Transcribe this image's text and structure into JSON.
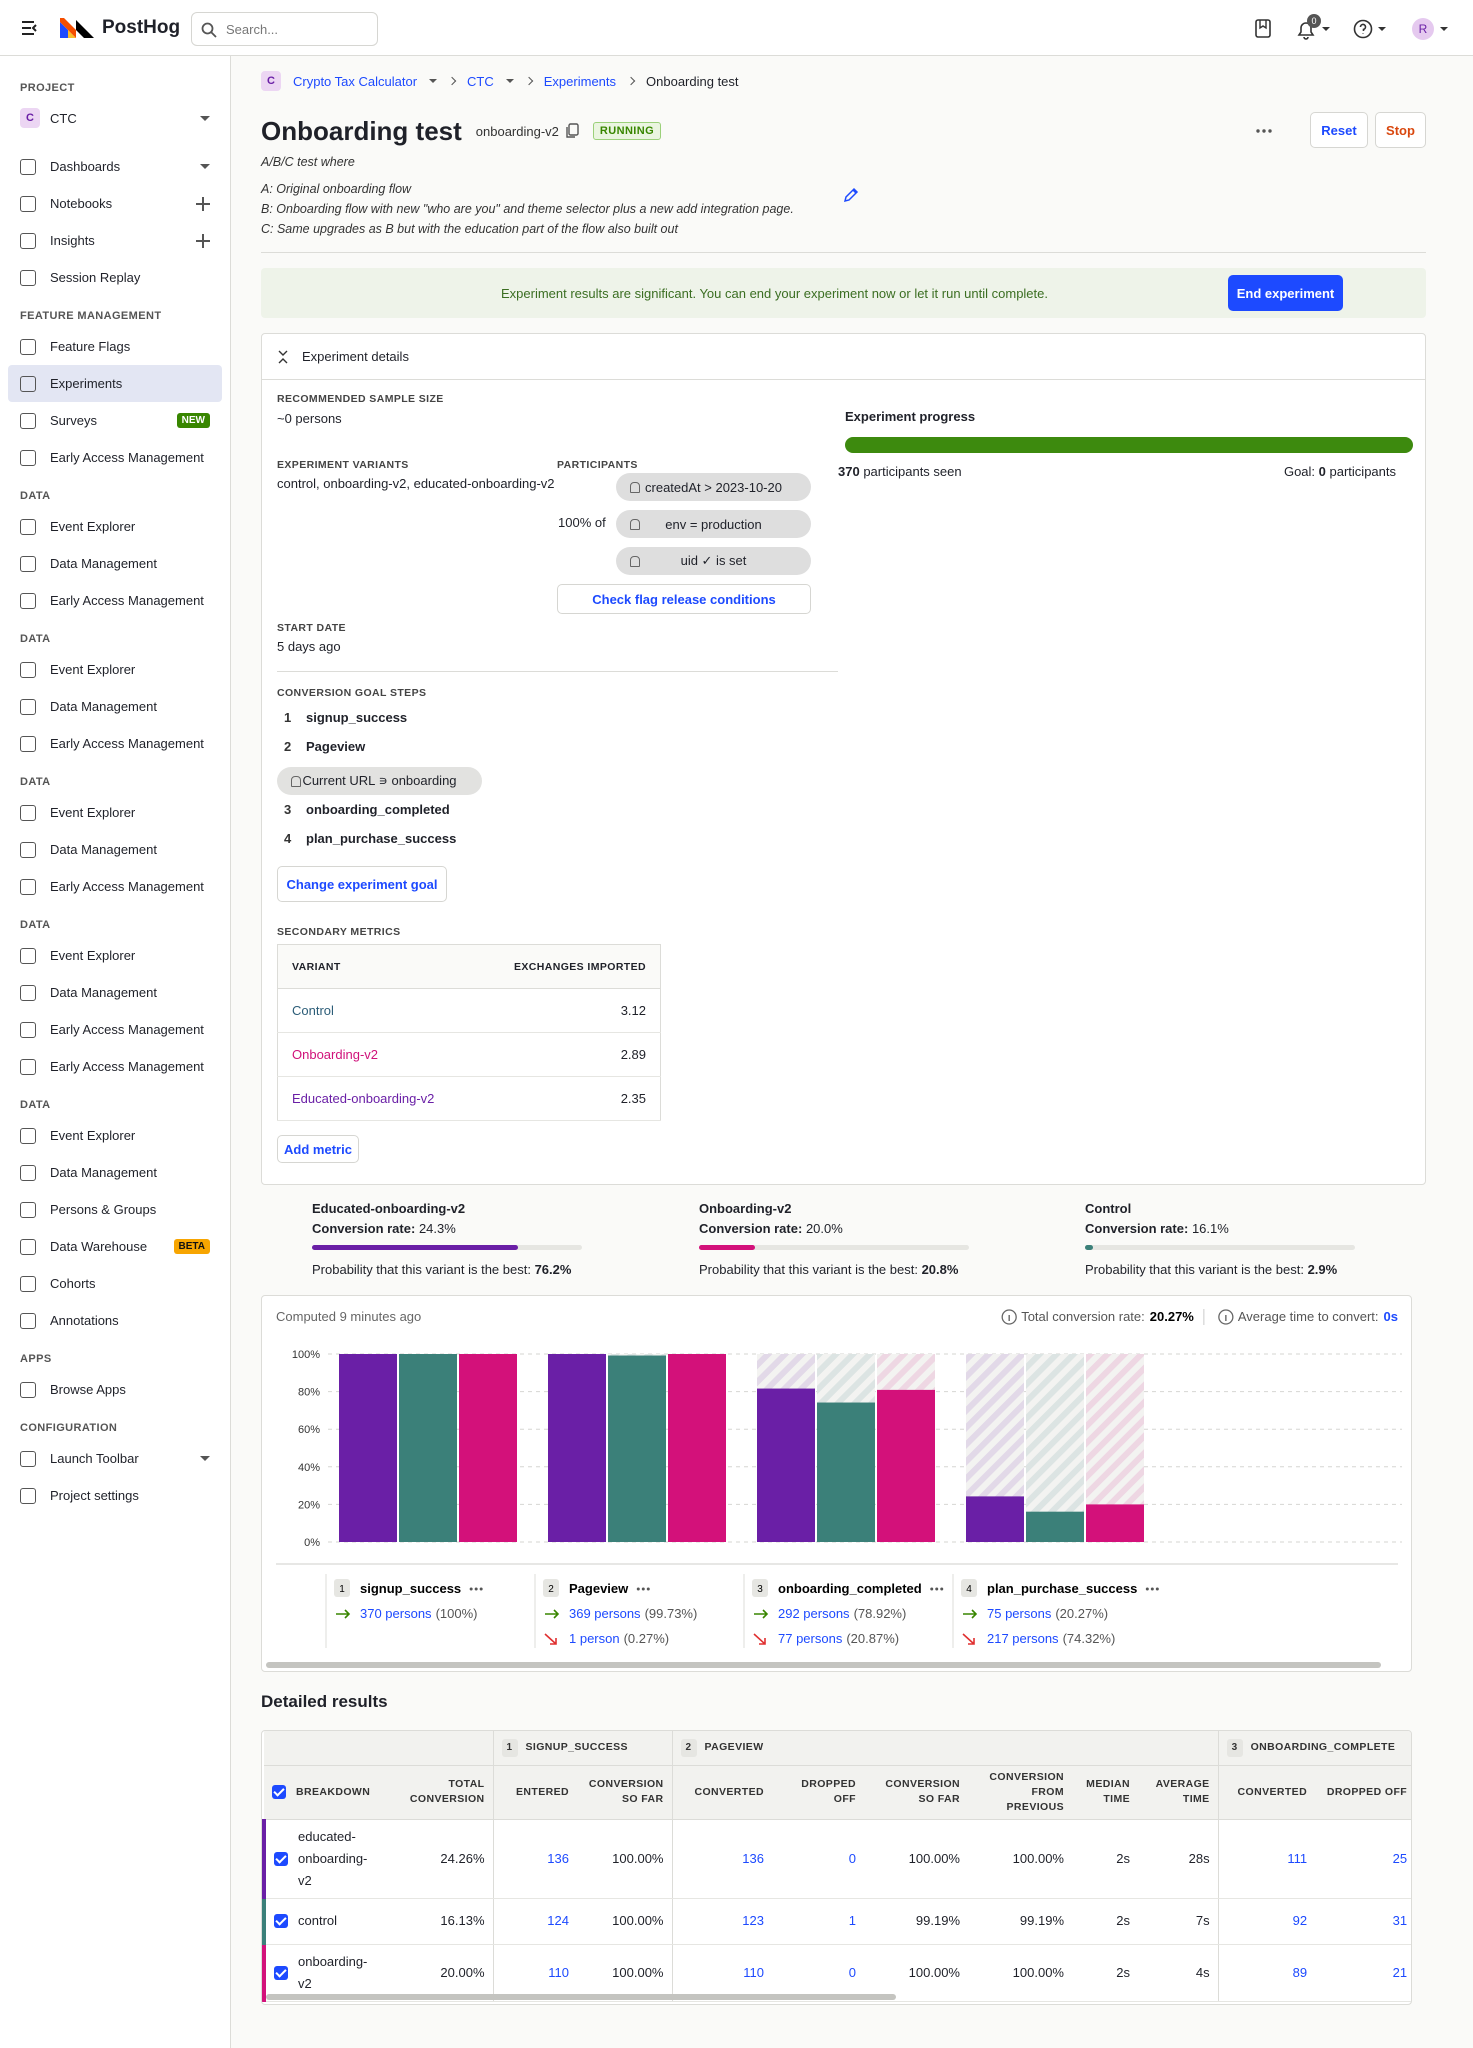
{
  "header": {
    "brand": "PostHog",
    "search_placeholder": "Search...",
    "notifications": "0",
    "avatar": "R"
  },
  "sidebar": {
    "project_label": "PROJECT",
    "project_badge": "C",
    "project": "CTC",
    "groups": [
      {
        "items": [
          {
            "label": "Dashboards"
          },
          {
            "label": "Notebooks"
          },
          {
            "label": "Insights"
          },
          {
            "label": "Session Replay"
          }
        ]
      },
      {
        "title": "FEATURE MANAGEMENT",
        "items": [
          {
            "label": "Feature Flags"
          },
          {
            "label": "Experiments",
            "active": true
          },
          {
            "label": "Surveys",
            "badge": "NEW",
            "badge_color": "#388600",
            "badge_text_color": "#ffffff"
          },
          {
            "label": "Early Access Management"
          }
        ]
      },
      {
        "title": "DATA",
        "items": [
          {
            "label": "Event Explorer"
          },
          {
            "label": "Data Management"
          },
          {
            "label": "Early Access Management"
          }
        ]
      },
      {
        "title": "DATA",
        "items": [
          {
            "label": "Event Explorer"
          },
          {
            "label": "Data Management"
          },
          {
            "label": "Early Access Management"
          }
        ]
      },
      {
        "title": "DATA",
        "items": [
          {
            "label": "Event Explorer"
          },
          {
            "label": "Data Management"
          },
          {
            "label": "Early Access Management"
          }
        ]
      },
      {
        "title": "DATA",
        "items": [
          {
            "label": "Event Explorer"
          },
          {
            "label": "Data Management"
          },
          {
            "label": "Early Access Management"
          },
          {
            "label": "Early Access Management"
          }
        ]
      },
      {
        "title": "DATA",
        "items": [
          {
            "label": "Event Explorer"
          },
          {
            "label": "Data Management"
          },
          {
            "label": "Persons & Groups"
          },
          {
            "label": "Data Warehouse",
            "badge": "BETA",
            "badge_color": "#f7a501",
            "badge_text_color": "#111111"
          },
          {
            "label": "Cohorts"
          },
          {
            "label": "Annotations"
          }
        ]
      },
      {
        "title": "APPS",
        "items": [
          {
            "label": "Browse Apps"
          }
        ]
      },
      {
        "title": "CONFIGURATION",
        "items": [
          {
            "label": "Launch Toolbar"
          },
          {
            "label": "Project settings"
          }
        ]
      }
    ]
  },
  "breadcrumbs": {
    "badge": "C",
    "items": [
      "Crypto Tax Calculator",
      "CTC",
      "Experiments",
      "Onboarding test"
    ]
  },
  "experiment": {
    "title": "Onboarding test",
    "flag_key": "onboarding-v2",
    "status": "RUNNING",
    "actions": [
      "Reset",
      "Stop"
    ],
    "description": [
      "A/B/C test where",
      "A: Original onboarding flow",
      "B: Onboarding flow with new \"who are you\" and theme selector plus a new add integration page.",
      "C: Same upgrades as B but with the education part of the flow also built out"
    ]
  },
  "banner": {
    "text": "Experiment results are significant. You can end your experiment now or let it run until complete.",
    "button": "End experiment"
  },
  "details": {
    "heading": "Experiment details",
    "sample_size_label": "RECOMMENDED SAMPLE SIZE",
    "sample_size": "~0 persons",
    "variants_label": "EXPERIMENT VARIANTS",
    "variants": "control, onboarding-v2, educated-onboarding-v2",
    "participants_label": "PARTICIPANTS",
    "rollout": "100% of",
    "conditions": [
      "createdAt > 2023-10-20",
      "env = production",
      "uid ✓ is set"
    ],
    "check_button": "Check flag release conditions",
    "start_label": "START DATE",
    "start": "5 days ago",
    "goal_label": "CONVERSION GOAL STEPS",
    "goal_steps": [
      {
        "number": "1",
        "event": "signup_success"
      },
      {
        "number": "2",
        "event": "Pageview",
        "filter": "Current URL ∍ onboarding"
      },
      {
        "number": "3",
        "event": "onboarding_completed"
      },
      {
        "number": "4",
        "event": "plan_purchase_success"
      }
    ],
    "goal_button": "Change experiment goal",
    "secondary_label": "SECONDARY METRICS",
    "secondary_columns": [
      "VARIANT",
      "EXCHANGES IMPORTED"
    ],
    "secondary_rows": [
      {
        "variant": "Control",
        "value": "3.12",
        "color": "#2c5d78"
      },
      {
        "variant": "Onboarding-v2",
        "value": "2.89",
        "color": "#d0117a"
      },
      {
        "variant": "Educated-onboarding-v2",
        "value": "2.35",
        "color": "#6a1fa6"
      }
    ],
    "add_metric": "Add metric",
    "progress_label": "Experiment progress",
    "seen": "370",
    "seen_text": "participants seen",
    "goal_text": "Goal:",
    "goal_value": "0",
    "goal_unit": "participants"
  },
  "variant_summary": [
    {
      "name": "Educated-onboarding-v2",
      "color": "#6a1fa6",
      "conversion_label": "Conversion rate:",
      "conversion_rate": "24.3%",
      "best_label": "Probability that this variant is the best:",
      "probability": 76.2,
      "probability_label": "76.2%"
    },
    {
      "name": "Onboarding-v2",
      "color": "#d3117a",
      "conversion_label": "Conversion rate:",
      "conversion_rate": "20.0%",
      "best_label": "Probability that this variant is the best:",
      "probability": 20.8,
      "probability_label": "20.8%"
    },
    {
      "name": "Control",
      "color": "#3b8079",
      "conversion_label": "Conversion rate:",
      "conversion_rate": "16.1%",
      "best_label": "Probability that this variant is the best:",
      "probability": 2.9,
      "probability_label": "2.9%"
    }
  ],
  "chart_data": {
    "type": "bar",
    "computed": "Computed 9 minutes ago",
    "total_conversion_label": "Total conversion rate:",
    "total_conversion": "20.27%",
    "avg_time_label": "Average time to convert:",
    "avg_time": "0s",
    "categories": [
      "signup_success",
      "Pageview",
      "onboarding_completed",
      "plan_purchase_success"
    ],
    "series": [
      {
        "color": "#6a1fa6",
        "values": [
          100,
          100,
          81.62,
          24.26
        ]
      },
      {
        "color": "#3b8079",
        "values": [
          100,
          99.19,
          74.19,
          16.13
        ]
      },
      {
        "color": "#d3117a",
        "values": [
          100,
          100,
          80.91,
          20.0
        ]
      }
    ],
    "ylim": [
      0,
      100
    ],
    "yticks": [
      {
        "value": 0,
        "label": "0%"
      },
      {
        "value": 20,
        "label": "20%"
      },
      {
        "value": 40,
        "label": "40%"
      },
      {
        "value": 60,
        "label": "60%"
      },
      {
        "value": 80,
        "label": "80%"
      },
      {
        "value": 100,
        "label": "100%"
      }
    ],
    "grid": true,
    "steps": [
      {
        "number": "1",
        "converted": "370 persons",
        "converted_pct": "(100%)"
      },
      {
        "number": "2",
        "converted": "369 persons",
        "converted_pct": "(99.73%)",
        "dropped": "1 person",
        "dropped_pct": "(0.27%)"
      },
      {
        "number": "3",
        "converted": "292 persons",
        "converted_pct": "(78.92%)",
        "dropped": "77 persons",
        "dropped_pct": "(20.87%)"
      },
      {
        "number": "4",
        "converted": "75 persons",
        "converted_pct": "(20.27%)",
        "dropped": "217 persons",
        "dropped_pct": "(74.32%)"
      }
    ]
  },
  "detailed_results": {
    "title": "Detailed results",
    "step_headers": [
      {
        "number": "1",
        "name": "SIGNUP_SUCCESS"
      },
      {
        "number": "2",
        "name": "PAGEVIEW"
      },
      {
        "number": "3",
        "name": "ONBOARDING_COMPLETE"
      }
    ],
    "columns": [
      "BREAKDOWN",
      "TOTAL CONVERSION",
      "ENTERED",
      "CONVERSION SO FAR",
      "CONVERTED",
      "DROPPED OFF",
      "CONVERSION SO FAR",
      "CONVERSION FROM PREVIOUS",
      "MEDIAN TIME",
      "AVERAGE TIME",
      "CONVERTED",
      "DROPPED OFF"
    ],
    "rows": [
      {
        "color": "#6a1fa6",
        "cells": [
          "educated-onboarding-v2",
          "24.26%",
          "136",
          "100.00%",
          "136",
          "0",
          "100.00%",
          "100.00%",
          "2s",
          "28s",
          "111",
          "25"
        ]
      },
      {
        "color": "#3b8079",
        "cells": [
          "control",
          "16.13%",
          "124",
          "100.00%",
          "123",
          "1",
          "99.19%",
          "99.19%",
          "2s",
          "7s",
          "92",
          "31"
        ]
      },
      {
        "color": "#d3117a",
        "cells": [
          "onboarding-v2",
          "20.00%",
          "110",
          "100.00%",
          "110",
          "0",
          "100.00%",
          "100.00%",
          "2s",
          "4s",
          "89",
          "21"
        ]
      }
    ]
  }
}
